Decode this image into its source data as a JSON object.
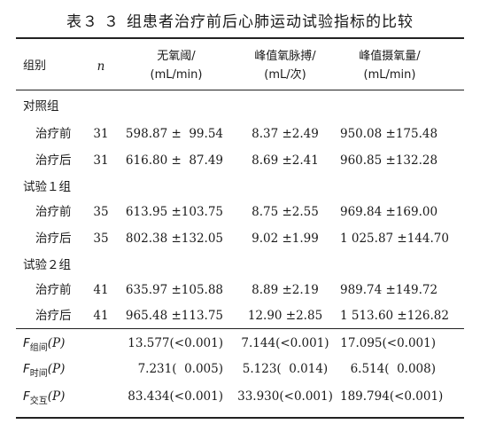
{
  "title": {
    "label": "表３",
    "number": "３",
    "text": "组患者治疗前后心肺运动试验指标的比较"
  },
  "header": {
    "group": "组别",
    "n": "n",
    "col3": {
      "line1": "无氧阈/",
      "line2": "(mL/min)"
    },
    "col4": {
      "line1": "峰值氧脉搏/",
      "line2": "(mL/次)"
    },
    "col5": {
      "line1": "峰值摄氧量/",
      "line2": "(mL/min)"
    }
  },
  "rows": [
    {
      "group": "对照组"
    },
    {
      "label": "治疗前",
      "n": "31",
      "v1": "598.87 ±  99.54",
      "v2": "8.37 ±2.49",
      "v3": "950.08 ±175.48"
    },
    {
      "label": "治疗后",
      "n": "31",
      "v1": "616.80 ±  87.49",
      "v2": "8.69 ±2.41",
      "v3": "960.85 ±132.28"
    },
    {
      "group": "试验１组"
    },
    {
      "label": "治疗前",
      "n": "35",
      "v1": "613.95 ±103.75",
      "v2": "8.75 ±2.55",
      "v3": "969.84 ±169.00"
    },
    {
      "label": "治疗后",
      "n": "35",
      "v1": "802.38 ±132.05",
      "v2": "9.02 ±1.99",
      "v3": "1 025.87 ±144.70"
    },
    {
      "group": "试验２组"
    },
    {
      "label": "治疗前",
      "n": "41",
      "v1": "635.97 ±105.88",
      "v2": "8.89 ±2.19",
      "v3": "989.74 ±149.72"
    },
    {
      "label": "治疗后",
      "n": "41",
      "v1": "965.48 ±113.75",
      "v2": "12.90 ±2.85",
      "v3": "1 513.60 ±126.82"
    }
  ],
  "stats": [
    {
      "F": "F",
      "sub": "组间",
      "P": "(P)",
      "v1": "13.577(<0.001)",
      "v2": "7.144(<0.001)",
      "v3": "17.095(<0.001)"
    },
    {
      "F": "F",
      "sub": "时间",
      "P": "(P)",
      "v1": "7.231(  0.005)",
      "v2": "5.123(  0.014)",
      "v3": "6.514(  0.008)"
    },
    {
      "F": "F",
      "sub": "交互",
      "P": "(P)",
      "v1": "83.434(<0.001)",
      "v2": "33.930(<0.001)",
      "v3": "189.794(<0.001)"
    }
  ]
}
